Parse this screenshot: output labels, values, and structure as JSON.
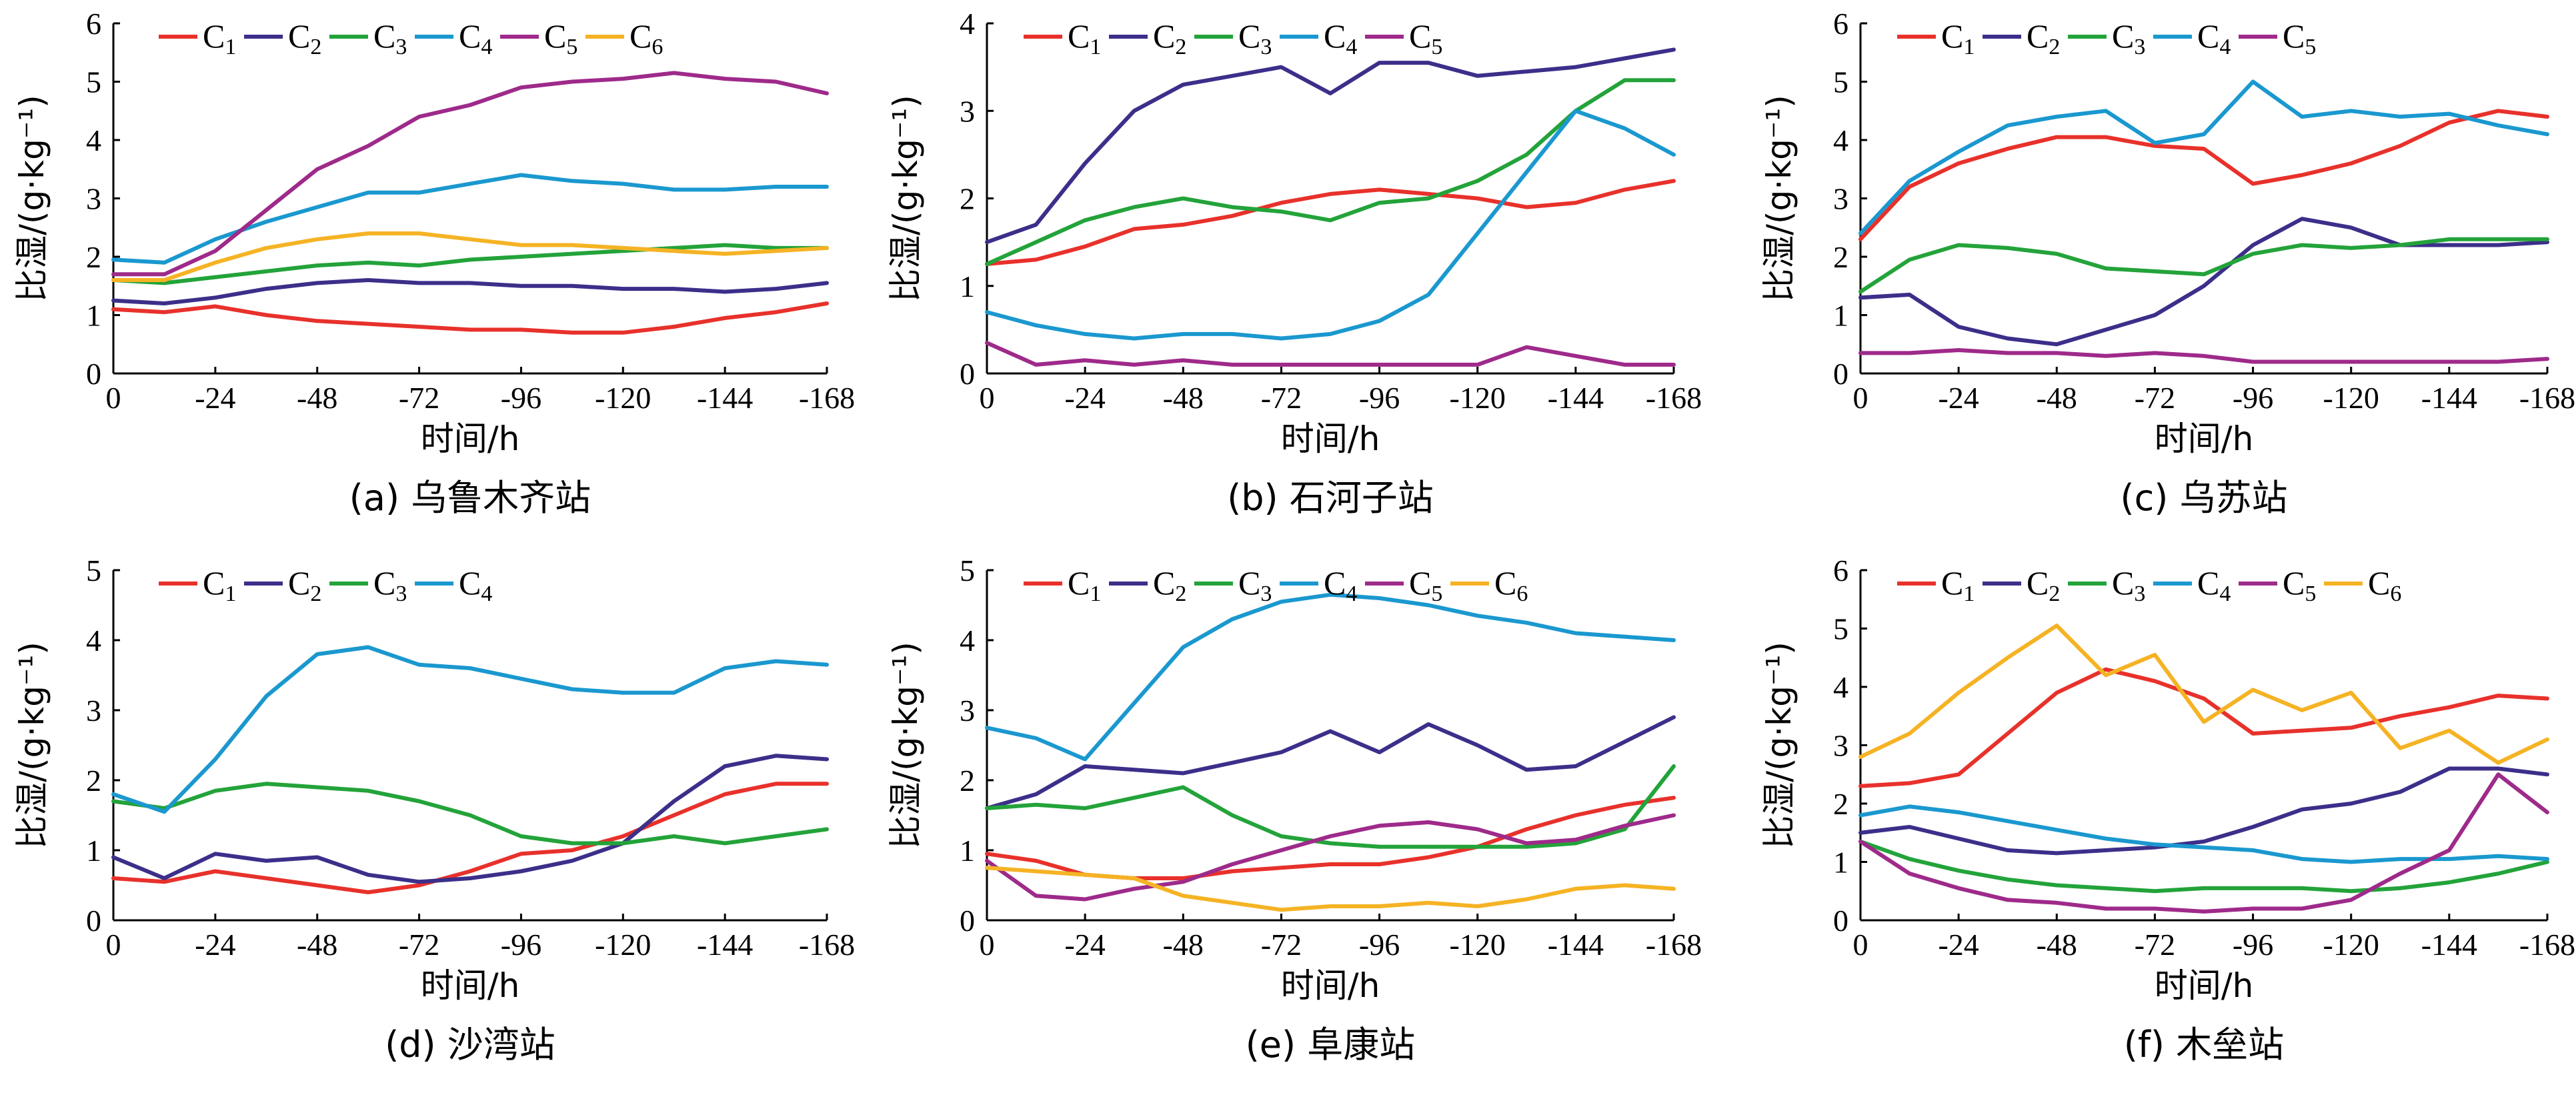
{
  "colors": {
    "C1": "#e8312b",
    "C2": "#3b2f8a",
    "C3": "#23a33a",
    "C4": "#1a98cf",
    "C5": "#9e2a8a",
    "C6": "#f5b324"
  },
  "shared": {
    "xlabel": "时间/h",
    "ylabel": "比湿/(g·kg⁻¹)",
    "xticks": [
      "0",
      "-24",
      "-48",
      "-72",
      "-96",
      "-120",
      "-144",
      "-168"
    ]
  },
  "chart_data": [
    {
      "type": "line",
      "caption": "(a) 乌鲁木齐站",
      "ylim": [
        0,
        6
      ],
      "yticks": [
        "0",
        "1",
        "2",
        "3",
        "4",
        "5",
        "6"
      ],
      "x": [
        0,
        -12,
        -24,
        -36,
        -48,
        -60,
        -72,
        -84,
        -96,
        -108,
        -120,
        -132,
        -144,
        -156,
        -168
      ],
      "series": [
        {
          "name": "C1",
          "key": "C1",
          "values": [
            1.1,
            1.05,
            1.15,
            1.0,
            0.9,
            0.85,
            0.8,
            0.75,
            0.75,
            0.7,
            0.7,
            0.8,
            0.95,
            1.05,
            1.2
          ]
        },
        {
          "name": "C2",
          "key": "C2",
          "values": [
            1.25,
            1.2,
            1.3,
            1.45,
            1.55,
            1.6,
            1.55,
            1.55,
            1.5,
            1.5,
            1.45,
            1.45,
            1.4,
            1.45,
            1.55
          ]
        },
        {
          "name": "C3",
          "key": "C3",
          "values": [
            1.6,
            1.55,
            1.65,
            1.75,
            1.85,
            1.9,
            1.85,
            1.95,
            2.0,
            2.05,
            2.1,
            2.15,
            2.2,
            2.15,
            2.15
          ]
        },
        {
          "name": "C4",
          "key": "C4",
          "values": [
            1.95,
            1.9,
            2.3,
            2.6,
            2.85,
            3.1,
            3.1,
            3.25,
            3.4,
            3.3,
            3.25,
            3.15,
            3.15,
            3.2,
            3.2
          ]
        },
        {
          "name": "C5",
          "key": "C5",
          "values": [
            1.7,
            1.7,
            2.1,
            2.8,
            3.5,
            3.9,
            4.4,
            4.6,
            4.9,
            5.0,
            5.05,
            5.15,
            5.05,
            5.0,
            4.8
          ]
        },
        {
          "name": "C6",
          "key": "C6",
          "values": [
            1.6,
            1.6,
            1.9,
            2.15,
            2.3,
            2.4,
            2.4,
            2.3,
            2.2,
            2.2,
            2.15,
            2.1,
            2.05,
            2.1,
            2.15
          ]
        }
      ]
    },
    {
      "type": "line",
      "caption": "(b) 石河子站",
      "ylim": [
        0,
        4
      ],
      "yticks": [
        "0",
        "1",
        "2",
        "3",
        "4"
      ],
      "x": [
        0,
        -12,
        -24,
        -36,
        -48,
        -60,
        -72,
        -84,
        -96,
        -108,
        -120,
        -132,
        -144,
        -156,
        -168
      ],
      "series": [
        {
          "name": "C1",
          "key": "C1",
          "values": [
            1.25,
            1.3,
            1.45,
            1.65,
            1.7,
            1.8,
            1.95,
            2.05,
            2.1,
            2.05,
            2.0,
            1.9,
            1.95,
            2.1,
            2.2
          ]
        },
        {
          "name": "C2",
          "key": "C2",
          "values": [
            1.5,
            1.7,
            2.4,
            3.0,
            3.3,
            3.4,
            3.5,
            3.2,
            3.55,
            3.55,
            3.4,
            3.45,
            3.5,
            3.6,
            3.7
          ]
        },
        {
          "name": "C3",
          "key": "C3",
          "values": [
            1.25,
            1.5,
            1.75,
            1.9,
            2.0,
            1.9,
            1.85,
            1.75,
            1.95,
            2.0,
            2.2,
            2.5,
            3.0,
            3.35,
            3.35
          ]
        },
        {
          "name": "C4",
          "key": "C4",
          "values": [
            0.7,
            0.55,
            0.45,
            0.4,
            0.45,
            0.45,
            0.4,
            0.45,
            0.6,
            0.9,
            1.6,
            2.3,
            3.0,
            2.8,
            2.5
          ]
        },
        {
          "name": "C5",
          "key": "C5",
          "values": [
            0.35,
            0.1,
            0.15,
            0.1,
            0.15,
            0.1,
            0.1,
            0.1,
            0.1,
            0.1,
            0.1,
            0.3,
            0.2,
            0.1,
            0.1
          ]
        }
      ]
    },
    {
      "type": "line",
      "caption": "(c) 乌苏站",
      "ylim": [
        0,
        6
      ],
      "yticks": [
        "0",
        "1",
        "2",
        "3",
        "4",
        "5",
        "6"
      ],
      "x": [
        0,
        -12,
        -24,
        -36,
        -48,
        -60,
        -72,
        -84,
        -96,
        -108,
        -120,
        -132,
        -144,
        -156,
        -168
      ],
      "series": [
        {
          "name": "C1",
          "key": "C1",
          "values": [
            2.3,
            3.2,
            3.6,
            3.85,
            4.05,
            4.05,
            3.9,
            3.85,
            3.25,
            3.4,
            3.6,
            3.9,
            4.3,
            4.5,
            4.4
          ]
        },
        {
          "name": "C2",
          "key": "C2",
          "values": [
            1.3,
            1.35,
            0.8,
            0.6,
            0.5,
            0.75,
            1.0,
            1.5,
            2.2,
            2.65,
            2.5,
            2.2,
            2.2,
            2.2,
            2.25
          ]
        },
        {
          "name": "C3",
          "key": "C3",
          "values": [
            1.4,
            1.95,
            2.2,
            2.15,
            2.05,
            1.8,
            1.75,
            1.7,
            2.05,
            2.2,
            2.15,
            2.2,
            2.3,
            2.3,
            2.3
          ]
        },
        {
          "name": "C4",
          "key": "C4",
          "values": [
            2.4,
            3.3,
            3.8,
            4.25,
            4.4,
            4.5,
            3.95,
            4.1,
            5.0,
            4.4,
            4.5,
            4.4,
            4.45,
            4.25,
            4.1
          ]
        },
        {
          "name": "C5",
          "key": "C5",
          "values": [
            0.35,
            0.35,
            0.4,
            0.35,
            0.35,
            0.3,
            0.35,
            0.3,
            0.2,
            0.2,
            0.2,
            0.2,
            0.2,
            0.2,
            0.25
          ]
        }
      ]
    },
    {
      "type": "line",
      "caption": "(d) 沙湾站",
      "ylim": [
        0,
        5
      ],
      "yticks": [
        "0",
        "1",
        "2",
        "3",
        "4",
        "5"
      ],
      "x": [
        0,
        -12,
        -24,
        -36,
        -48,
        -60,
        -72,
        -84,
        -96,
        -108,
        -120,
        -132,
        -144,
        -156,
        -168
      ],
      "series": [
        {
          "name": "C1",
          "key": "C1",
          "values": [
            0.6,
            0.55,
            0.7,
            0.6,
            0.5,
            0.4,
            0.5,
            0.7,
            0.95,
            1.0,
            1.2,
            1.5,
            1.8,
            1.95,
            1.95
          ]
        },
        {
          "name": "C2",
          "key": "C2",
          "values": [
            0.9,
            0.6,
            0.95,
            0.85,
            0.9,
            0.65,
            0.55,
            0.6,
            0.7,
            0.85,
            1.1,
            1.7,
            2.2,
            2.35,
            2.3
          ]
        },
        {
          "name": "C3",
          "key": "C3",
          "values": [
            1.7,
            1.6,
            1.85,
            1.95,
            1.9,
            1.85,
            1.7,
            1.5,
            1.2,
            1.1,
            1.1,
            1.2,
            1.1,
            1.2,
            1.3
          ]
        },
        {
          "name": "C4",
          "key": "C4",
          "values": [
            1.8,
            1.55,
            2.3,
            3.2,
            3.8,
            3.9,
            3.65,
            3.6,
            3.45,
            3.3,
            3.25,
            3.25,
            3.6,
            3.7,
            3.65
          ]
        }
      ]
    },
    {
      "type": "line",
      "caption": "(e) 阜康站",
      "ylim": [
        0,
        5
      ],
      "yticks": [
        "0",
        "1",
        "2",
        "3",
        "4",
        "5"
      ],
      "x": [
        0,
        -12,
        -24,
        -36,
        -48,
        -60,
        -72,
        -84,
        -96,
        -108,
        -120,
        -132,
        -144,
        -156,
        -168
      ],
      "series": [
        {
          "name": "C1",
          "key": "C1",
          "values": [
            0.95,
            0.85,
            0.65,
            0.6,
            0.6,
            0.7,
            0.75,
            0.8,
            0.8,
            0.9,
            1.05,
            1.3,
            1.5,
            1.65,
            1.75
          ]
        },
        {
          "name": "C2",
          "key": "C2",
          "values": [
            1.6,
            1.8,
            2.2,
            2.15,
            2.1,
            2.25,
            2.4,
            2.7,
            2.4,
            2.8,
            2.5,
            2.15,
            2.2,
            2.55,
            2.9
          ]
        },
        {
          "name": "C3",
          "key": "C3",
          "values": [
            1.6,
            1.65,
            1.6,
            1.75,
            1.9,
            1.5,
            1.2,
            1.1,
            1.05,
            1.05,
            1.05,
            1.05,
            1.1,
            1.3,
            2.2
          ]
        },
        {
          "name": "C4",
          "key": "C4",
          "values": [
            2.75,
            2.6,
            2.3,
            3.1,
            3.9,
            4.3,
            4.55,
            4.65,
            4.6,
            4.5,
            4.35,
            4.25,
            4.1,
            4.05,
            4.0
          ]
        },
        {
          "name": "C5",
          "key": "C5",
          "values": [
            0.85,
            0.35,
            0.3,
            0.45,
            0.55,
            0.8,
            1.0,
            1.2,
            1.35,
            1.4,
            1.3,
            1.1,
            1.15,
            1.35,
            1.5
          ]
        },
        {
          "name": "C6",
          "key": "C6",
          "values": [
            0.75,
            0.7,
            0.65,
            0.6,
            0.35,
            0.25,
            0.15,
            0.2,
            0.2,
            0.25,
            0.2,
            0.3,
            0.45,
            0.5,
            0.45
          ]
        }
      ]
    },
    {
      "type": "line",
      "caption": "(f) 木垒站",
      "ylim": [
        0,
        6
      ],
      "yticks": [
        "0",
        "1",
        "2",
        "3",
        "4",
        "5",
        "6"
      ],
      "x": [
        0,
        -12,
        -24,
        -36,
        -48,
        -60,
        -72,
        -84,
        -96,
        -108,
        -120,
        -132,
        -144,
        -156,
        -168
      ],
      "series": [
        {
          "name": "C1",
          "key": "C1",
          "values": [
            2.3,
            2.35,
            2.5,
            3.2,
            3.9,
            4.3,
            4.1,
            3.8,
            3.2,
            3.25,
            3.3,
            3.5,
            3.65,
            3.85,
            3.8
          ]
        },
        {
          "name": "C2",
          "key": "C2",
          "values": [
            1.5,
            1.6,
            1.4,
            1.2,
            1.15,
            1.2,
            1.25,
            1.35,
            1.6,
            1.9,
            2.0,
            2.2,
            2.6,
            2.6,
            2.5
          ]
        },
        {
          "name": "C3",
          "key": "C3",
          "values": [
            1.35,
            1.05,
            0.85,
            0.7,
            0.6,
            0.55,
            0.5,
            0.55,
            0.55,
            0.55,
            0.5,
            0.55,
            0.65,
            0.8,
            1.0
          ]
        },
        {
          "name": "C4",
          "key": "C4",
          "values": [
            1.8,
            1.95,
            1.85,
            1.7,
            1.55,
            1.4,
            1.3,
            1.25,
            1.2,
            1.05,
            1.0,
            1.05,
            1.05,
            1.1,
            1.05
          ]
        },
        {
          "name": "C5",
          "key": "C5",
          "values": [
            1.35,
            0.8,
            0.55,
            0.35,
            0.3,
            0.2,
            0.2,
            0.15,
            0.2,
            0.2,
            0.35,
            0.8,
            1.2,
            2.5,
            1.85
          ]
        },
        {
          "name": "C6",
          "key": "C6",
          "values": [
            2.8,
            3.2,
            3.9,
            4.5,
            5.05,
            4.2,
            4.55,
            3.4,
            3.95,
            3.6,
            3.9,
            2.95,
            3.25,
            2.7,
            3.1
          ]
        }
      ]
    }
  ]
}
